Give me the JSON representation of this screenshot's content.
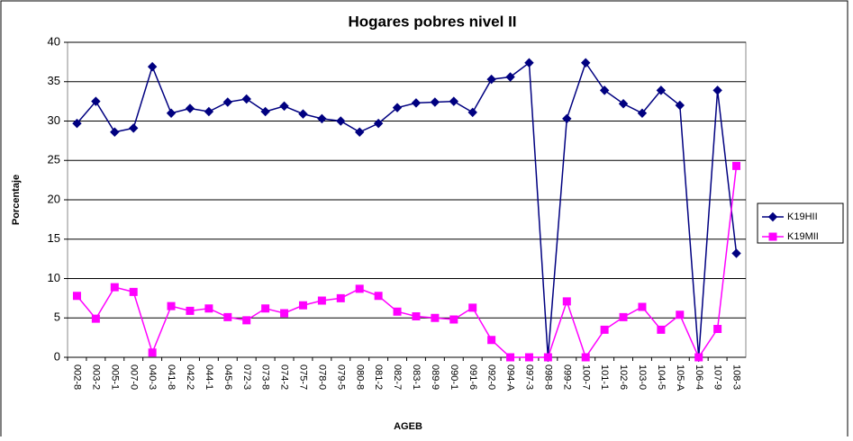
{
  "chart_data": {
    "type": "line",
    "title": "Hogares pobres nivel II",
    "x_label": "AGEB",
    "y_label": "Porcentaje",
    "categories": [
      "002-8",
      "003-2",
      "005-1",
      "007-0",
      "040-3",
      "041-8",
      "042-2",
      "044-1",
      "045-6",
      "072-3",
      "073-8",
      "074-2",
      "075-7",
      "078-0",
      "079-5",
      "080-8",
      "081-2",
      "082-7",
      "083-1",
      "089-9",
      "090-1",
      "091-6",
      "092-0",
      "094-A",
      "097-3",
      "098-8",
      "099-2",
      "100-7",
      "101-1",
      "102-6",
      "103-0",
      "104-5",
      "105-A",
      "106-4",
      "107-9",
      "108-3"
    ],
    "series": [
      {
        "name": "K19HII",
        "color": "#000080",
        "marker": "diamond",
        "values": [
          29.7,
          32.5,
          28.6,
          29.1,
          36.9,
          31.0,
          31.6,
          31.2,
          32.4,
          32.8,
          31.2,
          31.9,
          30.9,
          30.3,
          30.0,
          28.6,
          29.7,
          31.7,
          32.3,
          32.4,
          32.5,
          31.1,
          35.3,
          35.6,
          37.4,
          0,
          30.3,
          37.4,
          33.9,
          32.2,
          31.0,
          33.9,
          32.0,
          0,
          33.9,
          13.2
        ]
      },
      {
        "name": "K19MII",
        "color": "#ff00ff",
        "marker": "square",
        "values": [
          7.8,
          4.9,
          8.9,
          8.3,
          0.6,
          6.5,
          5.9,
          6.2,
          5.1,
          4.7,
          6.2,
          5.6,
          6.6,
          7.2,
          7.5,
          8.7,
          7.8,
          5.8,
          5.2,
          5.0,
          4.8,
          6.3,
          2.2,
          0,
          0,
          0,
          7.1,
          0,
          3.5,
          5.1,
          6.4,
          3.5,
          5.4,
          0,
          3.6,
          24.3
        ]
      }
    ],
    "ylim": [
      0,
      40
    ],
    "yticks": [
      0,
      5,
      10,
      15,
      20,
      25,
      30,
      35,
      40
    ],
    "grid": true,
    "legend": "right"
  }
}
